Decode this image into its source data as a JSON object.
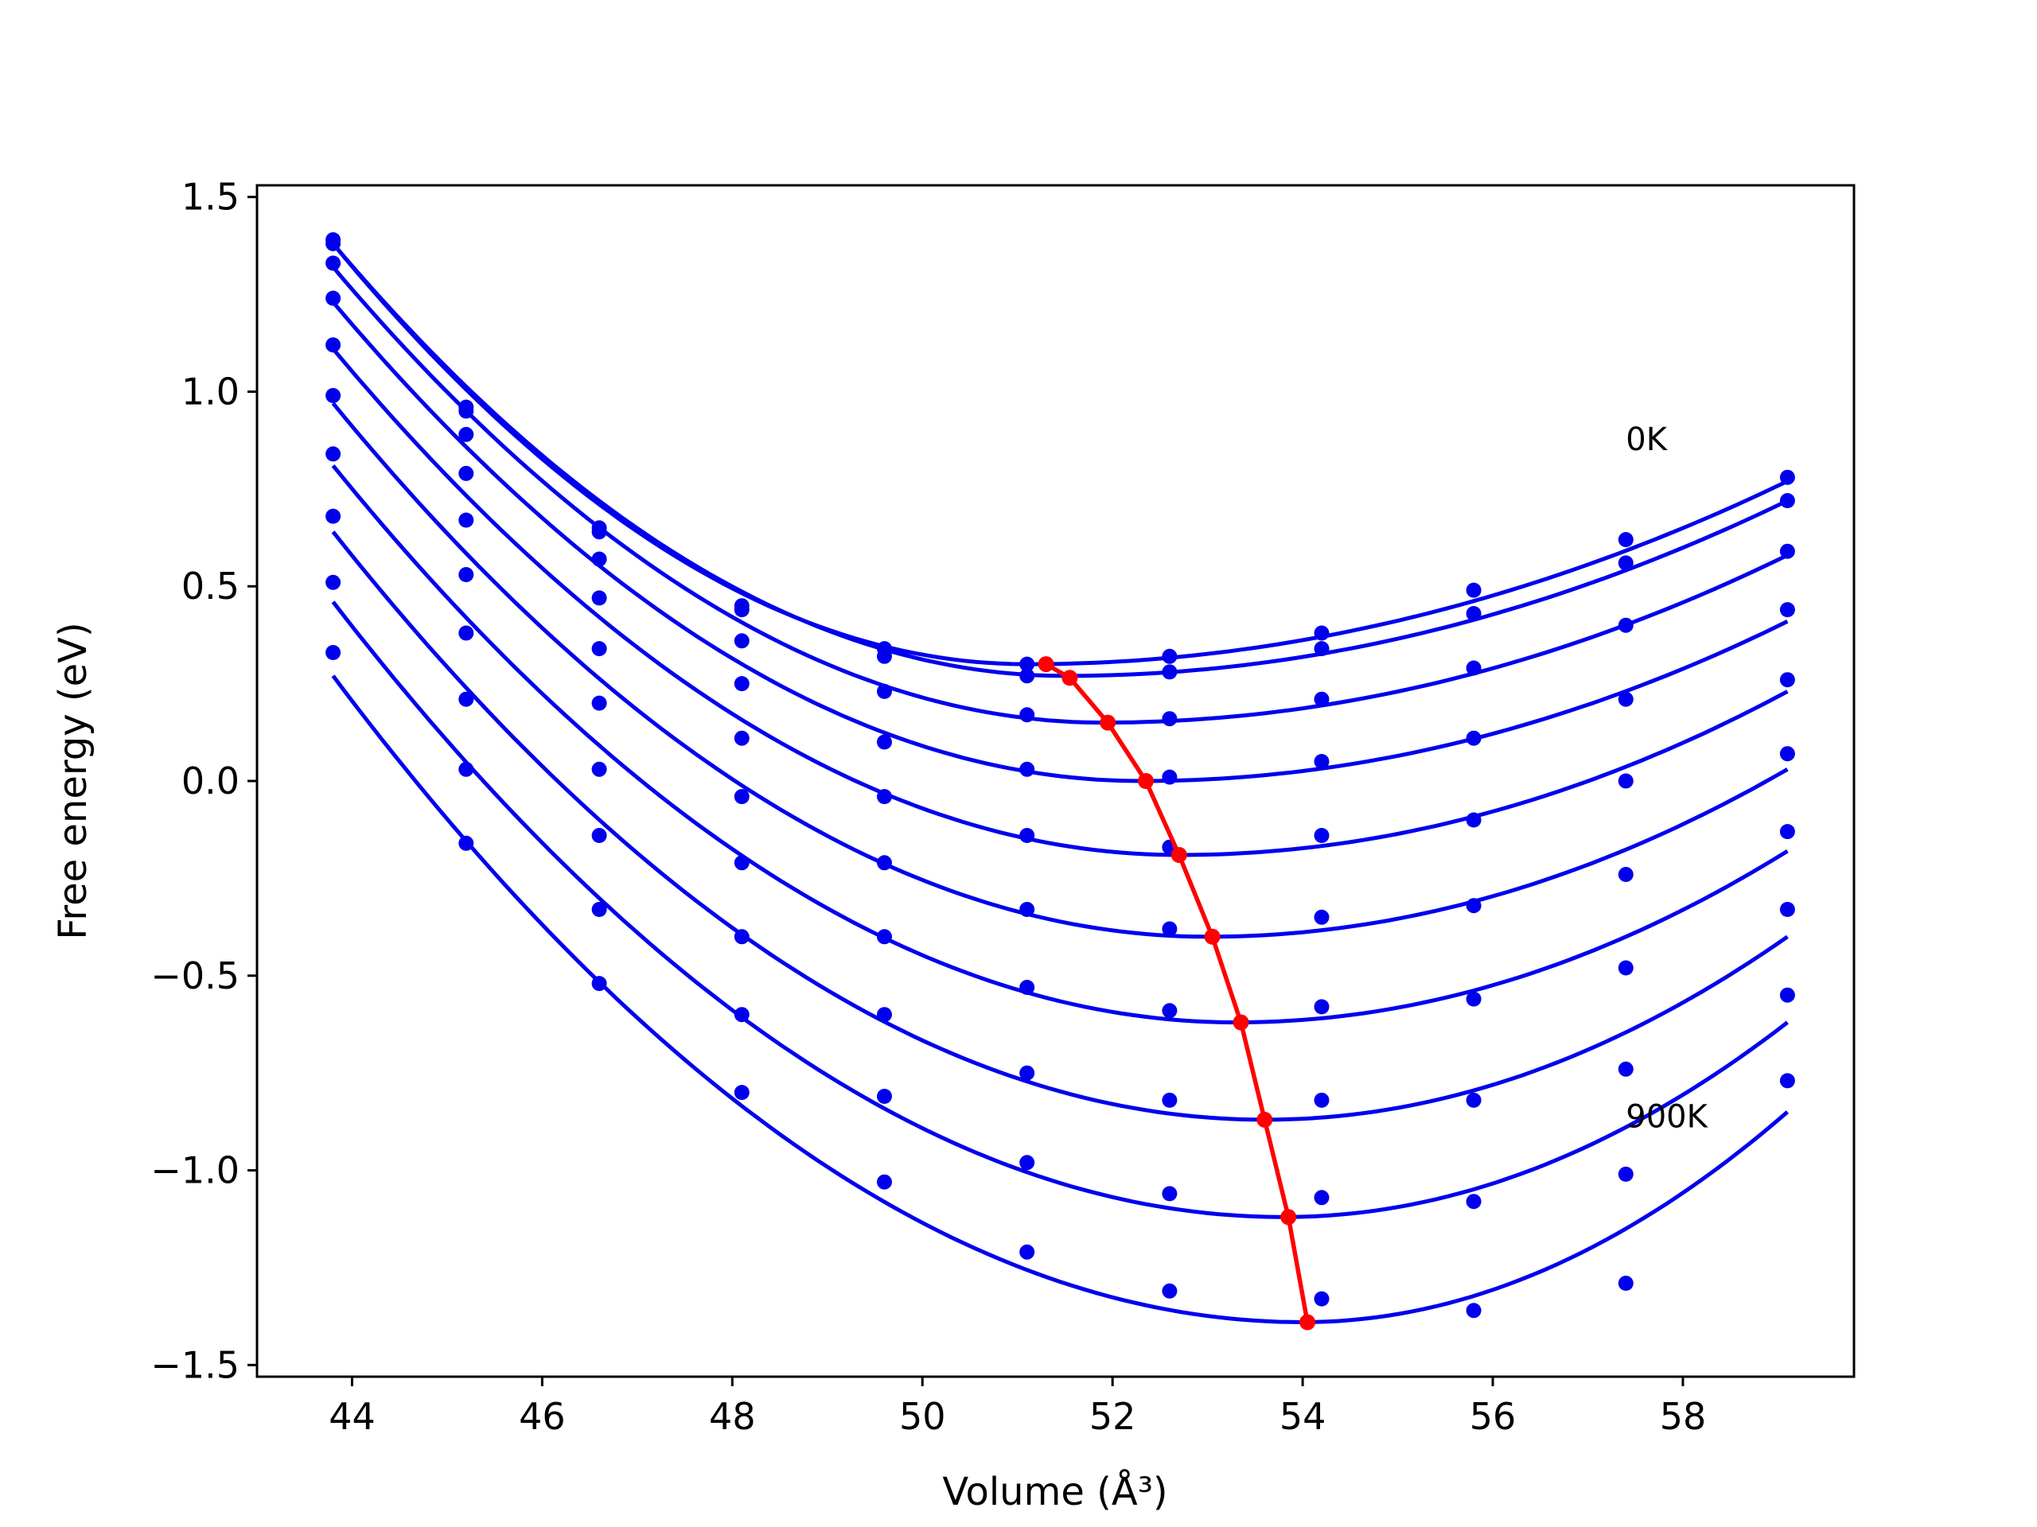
{
  "chart_data": {
    "type": "line",
    "xlabel": "Volume (Å³)",
    "ylabel": "Free energy (eV)",
    "xlim": [
      43.0,
      59.8
    ],
    "ylim": [
      -1.53,
      1.53
    ],
    "xticks": [
      44,
      46,
      48,
      50,
      52,
      54,
      56,
      58
    ],
    "yticks": [
      -1.5,
      -1.0,
      -0.5,
      0.0,
      0.5,
      1.0,
      1.5
    ],
    "grid": false,
    "curve_color": "#0000ee",
    "equilibrium_color": "#ff0000",
    "x_volumes": [
      43.8,
      45.2,
      46.6,
      48.1,
      49.6,
      51.1,
      52.6,
      54.2,
      55.8,
      57.4,
      59.1
    ],
    "series": [
      {
        "fit_min_x": 51.1,
        "fit_min_y": 0.3,
        "fit_left_y": 1.38,
        "fit_right_y": 0.77,
        "points": [
          1.39,
          0.96,
          0.65,
          0.45,
          0.34,
          0.3,
          0.32,
          0.38,
          0.49,
          0.62,
          0.78
        ]
      },
      {
        "fit_min_x": 51.5,
        "fit_min_y": 0.27,
        "fit_left_y": 1.38,
        "fit_right_y": 0.72,
        "points": [
          1.38,
          0.95,
          0.64,
          0.44,
          0.32,
          0.27,
          0.28,
          0.34,
          0.43,
          0.56,
          0.72
        ]
      },
      {
        "fit_min_x": 51.9,
        "fit_min_y": 0.15,
        "fit_left_y": 1.32,
        "fit_right_y": 0.58,
        "points": [
          1.33,
          0.89,
          0.57,
          0.36,
          0.23,
          0.17,
          0.16,
          0.21,
          0.29,
          0.4,
          0.59
        ]
      },
      {
        "fit_min_x": 52.3,
        "fit_min_y": 0.0,
        "fit_left_y": 1.23,
        "fit_right_y": 0.41,
        "points": [
          1.24,
          0.79,
          0.47,
          0.25,
          0.1,
          0.03,
          0.01,
          0.05,
          0.11,
          0.21,
          0.44
        ]
      },
      {
        "fit_min_x": 52.7,
        "fit_min_y": -0.19,
        "fit_left_y": 1.11,
        "fit_right_y": 0.23,
        "points": [
          1.12,
          0.67,
          0.34,
          0.11,
          -0.04,
          -0.14,
          -0.17,
          -0.14,
          -0.1,
          0.0,
          0.26
        ]
      },
      {
        "fit_min_x": 53.0,
        "fit_min_y": -0.4,
        "fit_left_y": 0.97,
        "fit_right_y": 0.03,
        "points": [
          0.99,
          0.53,
          0.2,
          -0.04,
          -0.21,
          -0.33,
          -0.38,
          -0.35,
          -0.32,
          -0.24,
          0.07
        ]
      },
      {
        "fit_min_x": 53.3,
        "fit_min_y": -0.62,
        "fit_left_y": 0.81,
        "fit_right_y": -0.18,
        "points": [
          0.84,
          0.38,
          0.03,
          -0.21,
          -0.4,
          -0.53,
          -0.59,
          -0.58,
          -0.56,
          -0.48,
          -0.13
        ]
      },
      {
        "fit_min_x": 53.6,
        "fit_min_y": -0.87,
        "fit_left_y": 0.64,
        "fit_right_y": -0.4,
        "points": [
          0.68,
          0.21,
          -0.14,
          -0.4,
          -0.6,
          -0.75,
          -0.82,
          -0.82,
          -0.82,
          -0.74,
          -0.33
        ]
      },
      {
        "fit_min_x": 53.8,
        "fit_min_y": -1.12,
        "fit_left_y": 0.46,
        "fit_right_y": -0.62,
        "points": [
          0.51,
          0.03,
          -0.33,
          -0.6,
          -0.81,
          -0.98,
          -1.06,
          -1.07,
          -1.08,
          -1.01,
          -0.55
        ]
      },
      {
        "fit_min_x": 54.0,
        "fit_min_y": -1.39,
        "fit_left_y": 0.27,
        "fit_right_y": -0.85,
        "points": [
          0.33,
          -0.16,
          -0.52,
          -0.8,
          -1.03,
          -1.21,
          -1.31,
          -1.33,
          -1.36,
          -1.29,
          -0.77
        ]
      }
    ],
    "equilibrium_line": {
      "x": [
        51.3,
        51.55,
        51.95,
        52.35,
        52.7,
        53.05,
        53.35,
        53.6,
        53.85,
        54.05
      ],
      "y": [
        0.3,
        0.265,
        0.15,
        0.0,
        -0.19,
        -0.4,
        -0.62,
        -0.87,
        -1.12,
        -1.39
      ]
    },
    "annotations": [
      {
        "text": "0K",
        "x": 57.4,
        "y": 0.85
      },
      {
        "text": "900K",
        "x": 57.4,
        "y": -0.89
      }
    ]
  }
}
